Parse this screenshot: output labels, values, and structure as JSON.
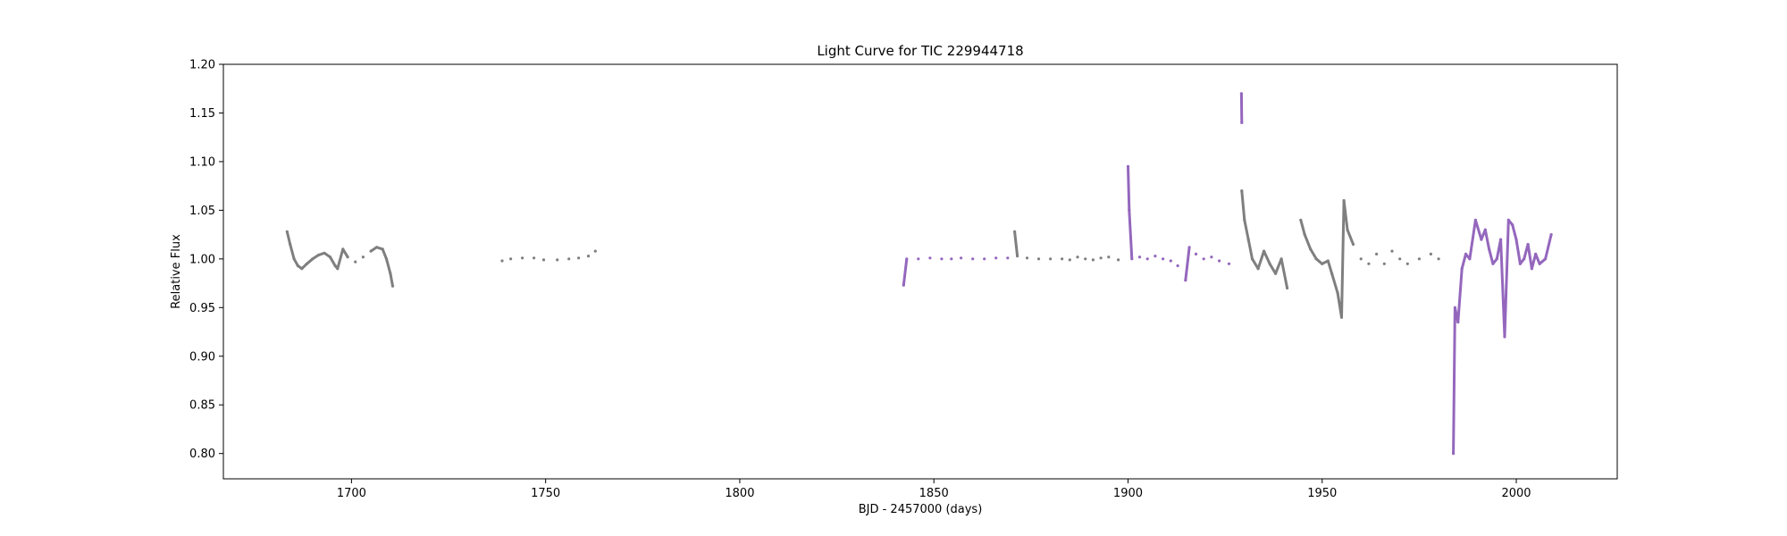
{
  "chart_data": {
    "type": "scatter",
    "title": "Light Curve for TIC 229944718",
    "xlabel": "BJD - 2457000 (days)",
    "ylabel": "Relative Flux",
    "xlim": [
      1667,
      2026
    ],
    "ylim": [
      0.774,
      1.2
    ],
    "xticks": [
      1700,
      1750,
      1800,
      1850,
      1900,
      1950,
      2000
    ],
    "yticks": [
      0.8,
      0.85,
      0.9,
      0.95,
      1.0,
      1.05,
      1.1,
      1.15,
      1.2
    ],
    "grid": false,
    "series": [
      {
        "color": "#7f7f7f",
        "points": [
          [
            1683.4,
            1.028
          ],
          [
            1684.2,
            1.015
          ],
          [
            1685.2,
            1.0
          ],
          [
            1686.2,
            0.993
          ],
          [
            1687.2,
            0.99
          ],
          [
            1688.5,
            0.995
          ],
          [
            1690.0,
            1.0
          ],
          [
            1691.5,
            1.004
          ],
          [
            1693.0,
            1.006
          ],
          [
            1694.5,
            1.002
          ],
          [
            1695.8,
            0.993
          ],
          [
            1696.4,
            0.99
          ],
          [
            1697.8,
            1.01
          ],
          [
            1699.0,
            1.002
          ],
          [
            1701.0,
            0.997
          ],
          [
            1703.0,
            1.002
          ],
          [
            1705.0,
            1.008
          ],
          [
            1706.5,
            1.012
          ],
          [
            1708.0,
            1.01
          ],
          [
            1709.0,
            1.0
          ],
          [
            1710.0,
            0.985
          ],
          [
            1710.6,
            0.972
          ],
          [
            1738.8,
            0.998
          ],
          [
            1741.0,
            1.0
          ],
          [
            1744.0,
            1.001
          ],
          [
            1747.0,
            1.001
          ],
          [
            1749.5,
            0.999
          ],
          [
            1753.0,
            0.999
          ],
          [
            1756.0,
            1.0
          ],
          [
            1758.5,
            1.001
          ],
          [
            1761.0,
            1.003
          ],
          [
            1762.8,
            1.008
          ],
          [
            1870.8,
            1.028
          ],
          [
            1871.5,
            1.003
          ],
          [
            1874.0,
            1.001
          ],
          [
            1877.0,
            1.0
          ],
          [
            1880.0,
            1.0
          ],
          [
            1883.0,
            1.0
          ],
          [
            1885.0,
            0.999
          ],
          [
            1887.0,
            1.002
          ],
          [
            1889.0,
            1.0
          ],
          [
            1891.0,
            0.999
          ],
          [
            1893.0,
            1.001
          ],
          [
            1895.0,
            1.002
          ],
          [
            1897.5,
            0.999
          ],
          [
            1929.3,
            1.07
          ],
          [
            1930.0,
            1.04
          ],
          [
            1931.0,
            1.02
          ],
          [
            1932.0,
            1.0
          ],
          [
            1933.5,
            0.99
          ],
          [
            1935.0,
            1.008
          ],
          [
            1936.5,
            0.995
          ],
          [
            1938.0,
            0.985
          ],
          [
            1939.5,
            1.0
          ],
          [
            1941.0,
            0.97
          ],
          [
            1944.5,
            1.04
          ],
          [
            1945.5,
            1.025
          ],
          [
            1947.0,
            1.01
          ],
          [
            1948.5,
            1.0
          ],
          [
            1950.0,
            0.995
          ],
          [
            1951.5,
            0.998
          ],
          [
            1952.5,
            0.985
          ],
          [
            1954.0,
            0.965
          ],
          [
            1955.0,
            0.94
          ],
          [
            1955.6,
            1.06
          ],
          [
            1956.5,
            1.03
          ],
          [
            1958.0,
            1.015
          ],
          [
            1960.0,
            1.0
          ],
          [
            1962.0,
            0.995
          ],
          [
            1964.0,
            1.005
          ],
          [
            1966.0,
            0.995
          ],
          [
            1968.0,
            1.008
          ],
          [
            1970.0,
            1.0
          ],
          [
            1972.0,
            0.995
          ],
          [
            1975.0,
            1.0
          ],
          [
            1978.0,
            1.005
          ],
          [
            1980.0,
            1.0
          ]
        ]
      },
      {
        "color": "#9467bd",
        "points": [
          [
            1842.2,
            0.973
          ],
          [
            1843.0,
            1.0
          ],
          [
            1846.0,
            1.0
          ],
          [
            1849.0,
            1.001
          ],
          [
            1852.0,
            1.0
          ],
          [
            1854.5,
            1.0
          ],
          [
            1857.0,
            1.001
          ],
          [
            1860.0,
            1.0
          ],
          [
            1863.0,
            1.0
          ],
          [
            1866.0,
            1.001
          ],
          [
            1869.0,
            1.001
          ],
          [
            1900.0,
            1.095
          ],
          [
            1900.3,
            1.05
          ],
          [
            1901.0,
            1.0
          ],
          [
            1903.0,
            1.002
          ],
          [
            1905.0,
            1.0
          ],
          [
            1907.0,
            1.003
          ],
          [
            1909.0,
            1.0
          ],
          [
            1911.0,
            0.998
          ],
          [
            1912.8,
            0.993
          ],
          [
            1914.8,
            0.978
          ],
          [
            1915.8,
            1.012
          ],
          [
            1917.5,
            1.005
          ],
          [
            1919.5,
            1.0
          ],
          [
            1921.5,
            1.002
          ],
          [
            1923.5,
            0.998
          ],
          [
            1926.0,
            0.995
          ],
          [
            1929.2,
            1.17
          ],
          [
            1929.3,
            1.14
          ],
          [
            1983.8,
            0.8
          ],
          [
            1984.2,
            0.95
          ],
          [
            1985.0,
            0.935
          ],
          [
            1986.0,
            0.99
          ],
          [
            1987.0,
            1.005
          ],
          [
            1988.0,
            1.0
          ],
          [
            1989.5,
            1.04
          ],
          [
            1991.0,
            1.02
          ],
          [
            1992.0,
            1.03
          ],
          [
            1993.0,
            1.01
          ],
          [
            1994.0,
            0.995
          ],
          [
            1995.0,
            1.0
          ],
          [
            1996.0,
            1.02
          ],
          [
            1997.0,
            0.92
          ],
          [
            1998.0,
            1.04
          ],
          [
            1999.0,
            1.035
          ],
          [
            2000.0,
            1.02
          ],
          [
            2001.0,
            0.995
          ],
          [
            2002.0,
            1.0
          ],
          [
            2003.0,
            1.015
          ],
          [
            2004.0,
            0.99
          ],
          [
            2005.0,
            1.005
          ],
          [
            2006.0,
            0.995
          ],
          [
            2007.5,
            1.0
          ],
          [
            2009.0,
            1.025
          ]
        ]
      }
    ]
  }
}
